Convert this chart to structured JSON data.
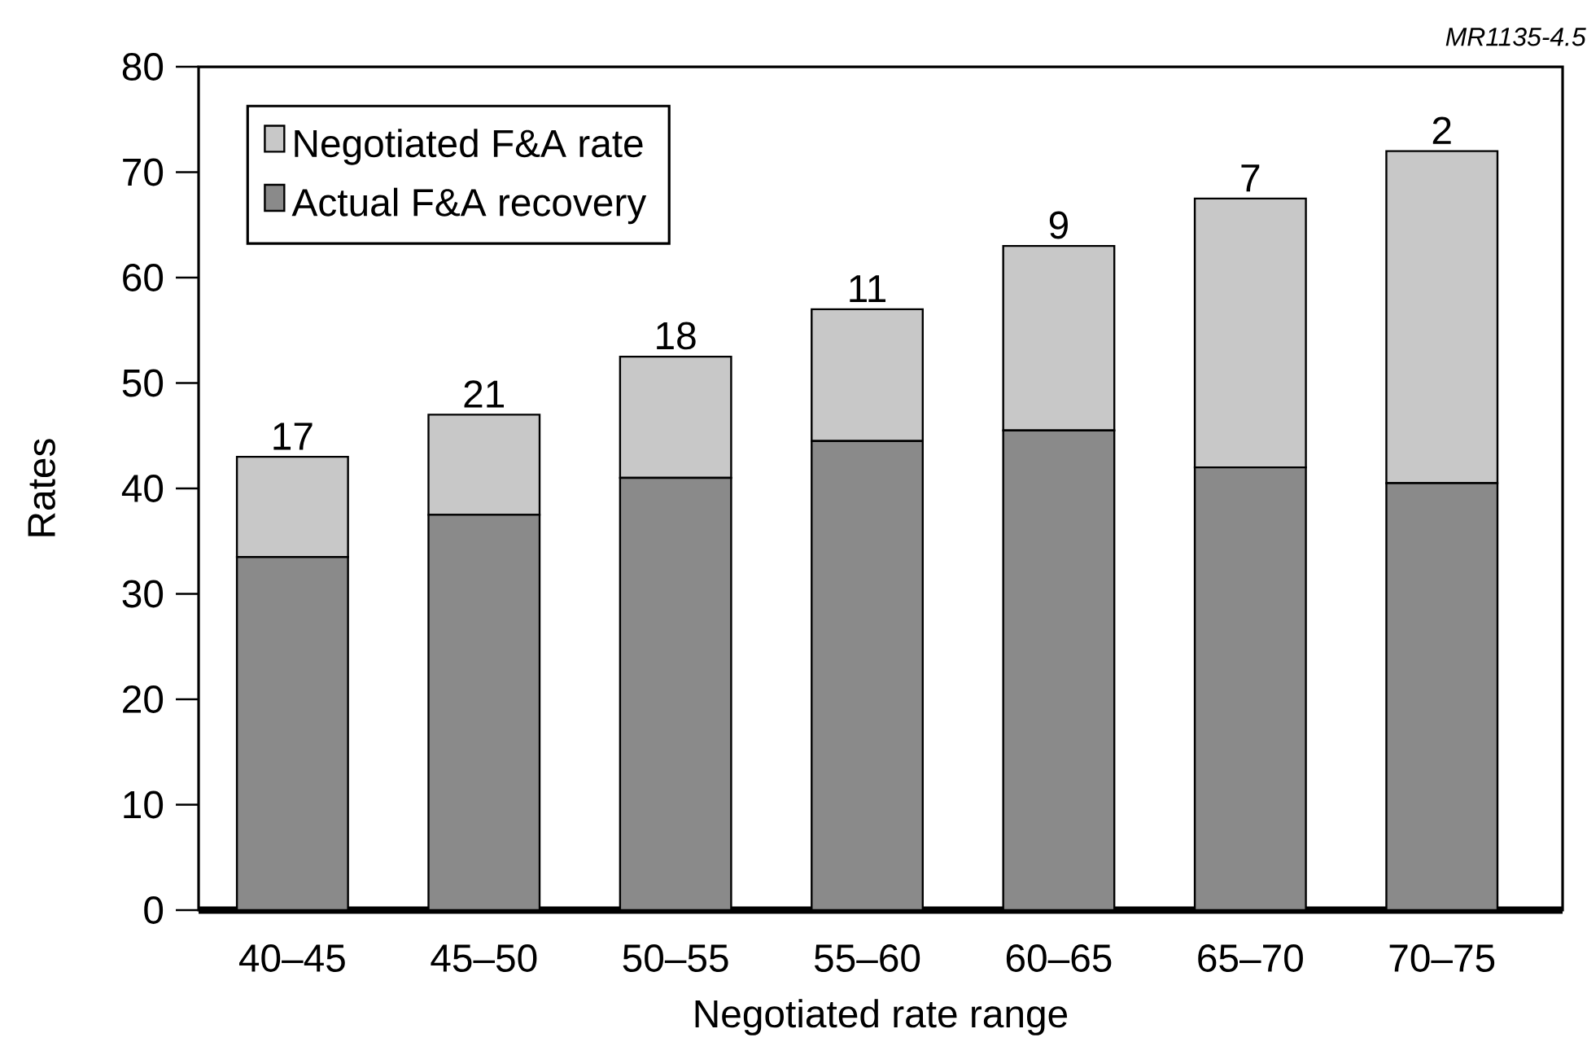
{
  "chart_data": {
    "type": "bar",
    "xlabel": "Negotiated rate range",
    "ylabel": "Rates",
    "categories": [
      "40–45",
      "45–50",
      "50–55",
      "55–60",
      "60–65",
      "65–70",
      "70–75"
    ],
    "stacked": true,
    "legend": "top left",
    "series": [
      {
        "name": "Actual F&A recovery",
        "color": "#8a8a8a",
        "values": [
          33.5,
          37.5,
          41,
          44.5,
          45.5,
          42,
          40.5
        ]
      },
      {
        "name": "Negotiated F&A rate",
        "color": "#c8c8c8",
        "values": [
          9.5,
          9.5,
          11.5,
          12.5,
          17.5,
          25.5,
          31.5
        ]
      }
    ],
    "ylim": [
      0,
      80
    ],
    "yticks": [
      0,
      10,
      20,
      30,
      40,
      50,
      60,
      70,
      80
    ],
    "annotations": [
      {
        "text": "17",
        "x": "40–45",
        "y": 43
      },
      {
        "text": "21",
        "x": "45–50",
        "y": 47
      },
      {
        "text": "18",
        "x": "50–55",
        "y": 52.5
      },
      {
        "text": "11",
        "x": "55–60",
        "y": 57
      },
      {
        "text": "9",
        "x": "60–65",
        "y": 63
      },
      {
        "text": "7",
        "x": "65–70",
        "y": 67.5
      },
      {
        "text": "2",
        "x": "70–75",
        "y": 72
      },
      "MR1135-4.5"
    ]
  }
}
